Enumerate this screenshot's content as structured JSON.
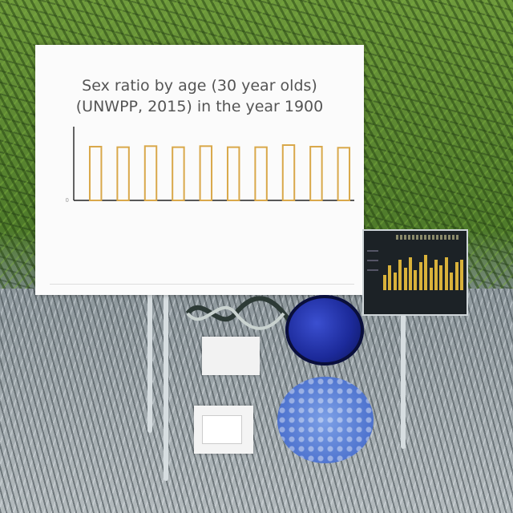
{
  "chart_data": {
    "type": "bar",
    "title_line1": "Sex ratio by age (30 year olds)",
    "title_line2": "(UNWPP, 2015) in the year 1900",
    "categories": [
      "",
      "",
      "",
      "",
      "",
      "",
      "",
      "",
      "",
      ""
    ],
    "values": [
      102,
      101,
      103,
      101,
      103,
      101,
      101,
      105,
      102,
      100
    ],
    "ylim": [
      0,
      140
    ],
    "ytick_labels": [
      "0",
      "",
      "",
      "",
      "",
      "",
      ""
    ],
    "xlabel": "",
    "ylabel": "",
    "bar_color": "#d9a84a",
    "grid": false
  },
  "footer": {
    "left": "",
    "right": ""
  },
  "thumbnail_chart": {
    "values": [
      6,
      10,
      7,
      12,
      9,
      13,
      8,
      11,
      14,
      9,
      12,
      10,
      13,
      7,
      11,
      12
    ],
    "bar_color": "#d9b23a"
  },
  "doc_card": {
    "lines": [
      "",
      "",
      ""
    ]
  },
  "colors": {
    "accent": "#d9a84a",
    "protein_dark": "#1c2a9a",
    "protein_light": "#4f74cf",
    "foliage": "#4e7a2a"
  }
}
